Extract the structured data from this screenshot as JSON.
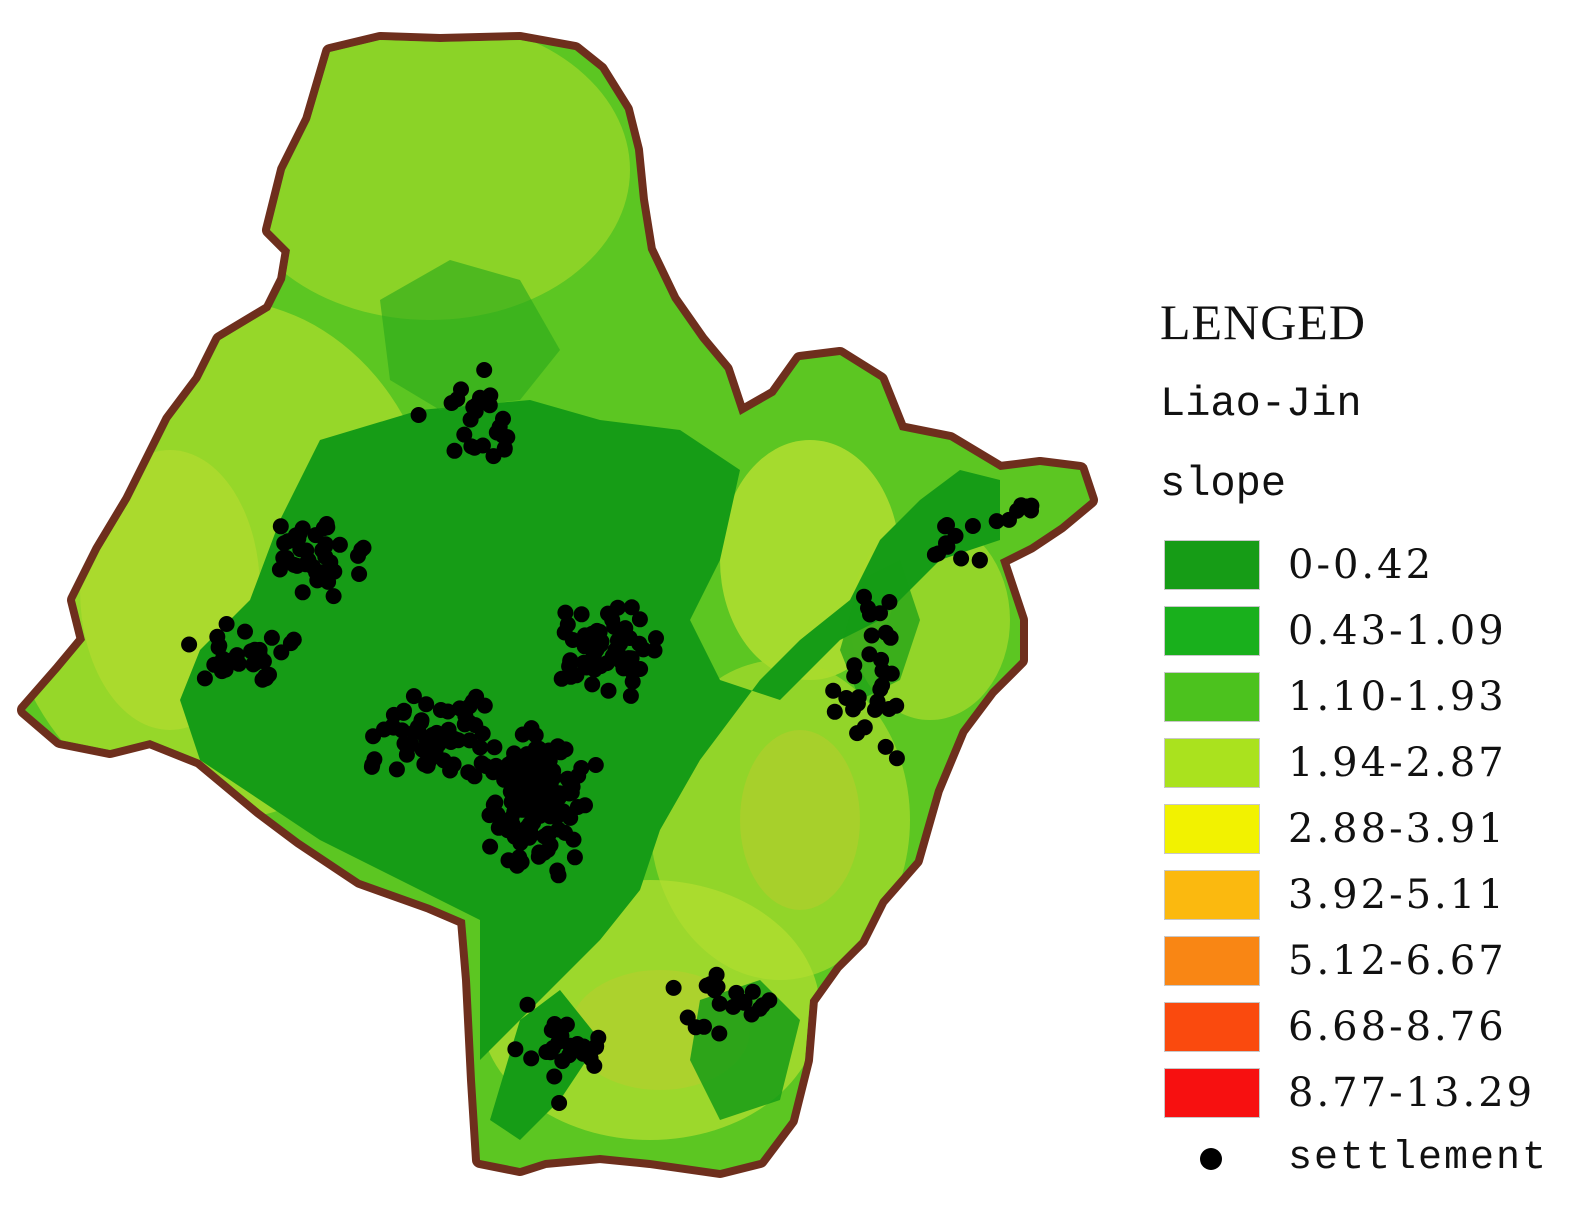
{
  "legend": {
    "title": "LENGED",
    "region": "Liao-Jin",
    "layer": "slope",
    "classes": [
      {
        "label": "0-0.42",
        "color": "#169c16"
      },
      {
        "label": "0.43-1.09",
        "color": "#19b01c"
      },
      {
        "label": "1.10-1.93",
        "color": "#4cc21e"
      },
      {
        "label": "1.94-2.87",
        "color": "#aae21e"
      },
      {
        "label": "2.88-3.91",
        "color": "#f2f200"
      },
      {
        "label": "3.92-5.11",
        "color": "#fbb90f"
      },
      {
        "label": "5.12-6.67",
        "color": "#f98614"
      },
      {
        "label": "6.68-8.76",
        "color": "#fa4a0e"
      },
      {
        "label": "8.77-13.29",
        "color": "#f71010"
      }
    ],
    "settlement_label": "settlement"
  },
  "map": {
    "boundary_color": "#6e2f1d",
    "settlement_color": "#000000"
  }
}
